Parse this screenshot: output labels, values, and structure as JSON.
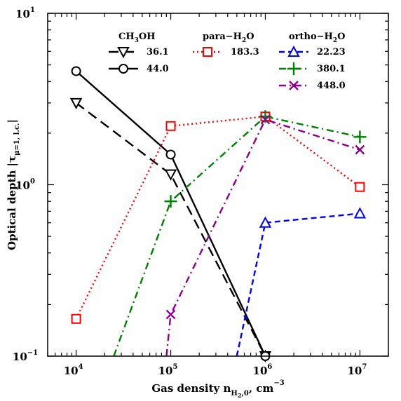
{
  "chart_data": {
    "type": "line",
    "xlabel": "Gas density n",
    "xlabel_sub": "H",
    "xlabel_subsub": "2",
    "xlabel_sub_tail": ",0",
    "xlabel_unit": ", cm",
    "xlabel_exp": "−3",
    "ylabel": "Optical depth |τ",
    "ylabel_sub": "μ=1, l.c.",
    "ylabel_tail": "|",
    "x_scale": "log",
    "y_scale": "log",
    "xlim": [
      5000,
      20000000
    ],
    "ylim": [
      0.1,
      10
    ],
    "x_ticks": [
      {
        "value": 10000,
        "base": "10",
        "exp": "4"
      },
      {
        "value": 100000,
        "base": "10",
        "exp": "5"
      },
      {
        "value": 1000000,
        "base": "10",
        "exp": "6"
      },
      {
        "value": 10000000,
        "base": "10",
        "exp": "7"
      }
    ],
    "y_ticks": [
      {
        "value": 0.1,
        "base": "10",
        "exp": "−1"
      },
      {
        "value": 1,
        "base": "10",
        "exp": "0"
      },
      {
        "value": 10,
        "base": "10",
        "exp": "1"
      }
    ],
    "legend_groups": [
      {
        "title": "CH",
        "title_sub": "3",
        "title_tail": "OH",
        "series": [
          "36.1",
          "44.0"
        ]
      },
      {
        "title": "para−H",
        "title_sub": "2",
        "title_tail": "O",
        "series": [
          "183.3"
        ]
      },
      {
        "title": "ortho−H",
        "title_sub": "2",
        "title_tail": "O",
        "series": [
          "22.23",
          "380.1",
          "448.0"
        ]
      }
    ],
    "series": [
      {
        "name": "36.1",
        "color": "#000000",
        "dash": "14,8",
        "marker": "triangle-down",
        "x": [
          10000,
          100000,
          1000000
        ],
        "y": [
          3.0,
          1.15,
          0.1
        ]
      },
      {
        "name": "44.0",
        "color": "#000000",
        "dash": "",
        "marker": "circle",
        "x": [
          10000,
          100000,
          1000000
        ],
        "y": [
          4.6,
          1.5,
          0.1
        ]
      },
      {
        "name": "183.3",
        "color": "#ff0000",
        "dash": "2,4",
        "marker": "square",
        "x": [
          10000,
          100000,
          1000000,
          10000000
        ],
        "y": [
          0.165,
          2.2,
          2.5,
          0.97
        ]
      },
      {
        "name": "22.23",
        "color": "#0000ff",
        "dash": "8,5",
        "marker": "triangle-up",
        "x": [
          500000,
          1000000,
          10000000
        ],
        "y": [
          0.1,
          0.6,
          0.68
        ],
        "marker_mask": [
          false,
          true,
          true
        ]
      },
      {
        "name": "380.1",
        "color": "#008000",
        "dash": "10,5,2,5",
        "marker": "plus",
        "x": [
          25000,
          100000,
          1000000,
          10000000
        ],
        "y": [
          0.1,
          0.8,
          2.5,
          1.9
        ],
        "marker_mask": [
          false,
          true,
          true,
          true
        ]
      },
      {
        "name": "448.0",
        "color": "#8b008b",
        "dash": "10,5,2,5",
        "marker": "x",
        "x": [
          90000,
          100000,
          1000000,
          10000000
        ],
        "y": [
          0.1,
          0.175,
          2.4,
          1.6
        ],
        "marker_mask": [
          false,
          true,
          true,
          true
        ]
      }
    ]
  }
}
